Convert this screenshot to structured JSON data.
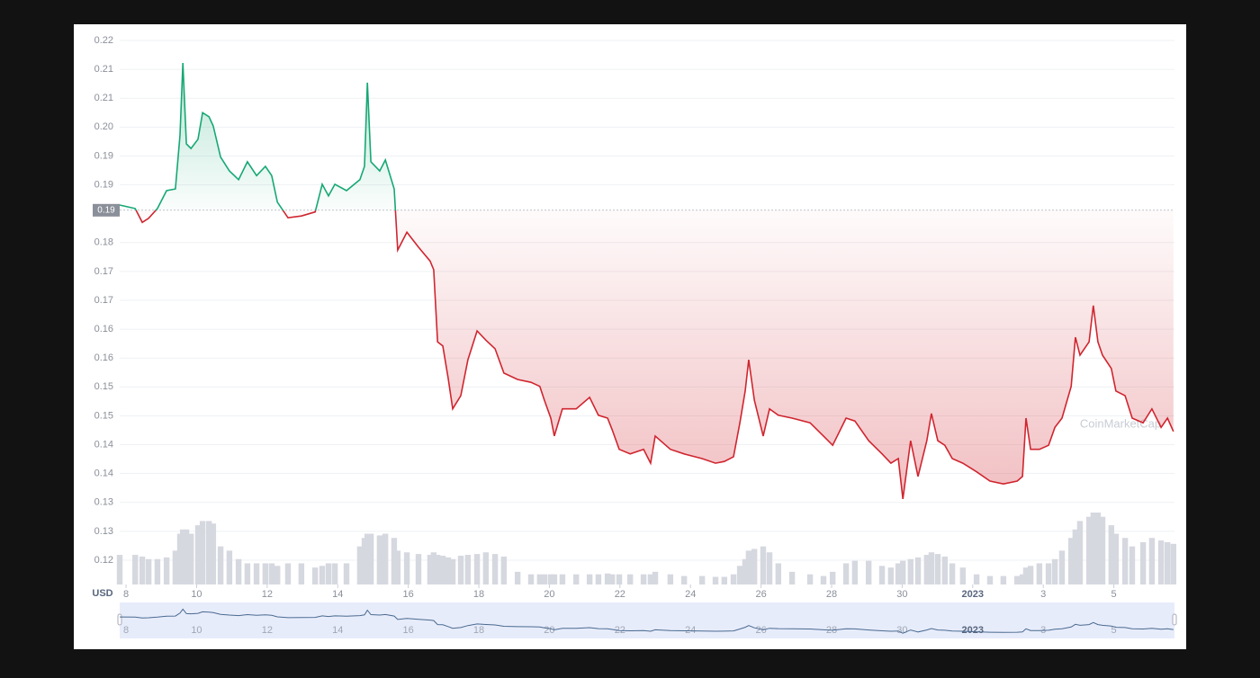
{
  "chart_data": {
    "type": "line",
    "currency": "USD",
    "watermark": "CoinMarketCap",
    "x": [
      -0.18,
      0.26,
      0.46,
      0.64,
      0.89,
      1.15,
      1.4,
      1.53,
      1.61,
      1.71,
      1.84,
      2.04,
      2.17,
      2.35,
      2.47,
      2.68,
      2.93,
      3.19,
      3.44,
      3.7,
      3.95,
      4.13,
      4.29,
      4.59,
      4.97,
      5.36,
      5.56,
      5.74,
      5.92,
      6.25,
      6.63,
      6.76,
      6.84,
      6.94,
      7.19,
      7.35,
      7.6,
      7.7,
      7.96,
      8.29,
      8.62,
      8.72,
      8.83,
      8.98,
      9.13,
      9.26,
      9.49,
      9.69,
      9.95,
      10.2,
      10.46,
      10.71,
      11.1,
      11.48,
      11.73,
      11.86,
      12.04,
      12.14,
      12.37,
      12.76,
      13.14,
      13.39,
      13.65,
      13.78,
      13.98,
      14.29,
      14.67,
      14.87,
      15.0,
      15.43,
      15.82,
      16.33,
      16.71,
      16.96,
      17.22,
      17.4,
      17.55,
      17.65,
      17.81,
      18.06,
      18.24,
      18.49,
      18.88,
      19.39,
      19.77,
      20.03,
      20.41,
      20.66,
      21.05,
      21.43,
      21.68,
      21.89,
      22.02,
      22.24,
      22.45,
      22.7,
      22.83,
      23.01,
      23.21,
      23.42,
      23.72,
      24.11,
      24.49,
      24.87,
      25.26,
      25.41,
      25.51,
      25.64,
      25.89,
      26.15,
      26.33,
      26.53,
      26.79,
      26.91,
      27.04,
      27.3,
      27.42,
      27.55,
      27.68,
      27.93,
      28.06,
      28.32,
      28.52,
      28.83,
      29.08,
      29.34,
      29.52,
      29.69
    ],
    "values": [
      0.1865,
      0.1859,
      0.1835,
      0.1842,
      0.1859,
      0.189,
      0.1893,
      0.1986,
      0.2111,
      0.1971,
      0.1963,
      0.1979,
      0.2025,
      0.2018,
      0.2002,
      0.1948,
      0.1924,
      0.1909,
      0.194,
      0.1916,
      0.1932,
      0.1916,
      0.187,
      0.1843,
      0.1846,
      0.1853,
      0.1901,
      0.1881,
      0.1901,
      0.189,
      0.1909,
      0.1932,
      0.2077,
      0.194,
      0.1924,
      0.1943,
      0.1893,
      0.1787,
      0.1818,
      0.1792,
      0.1768,
      0.1753,
      0.1628,
      0.1621,
      0.1566,
      0.1512,
      0.1535,
      0.1597,
      0.1647,
      0.1631,
      0.1616,
      0.1574,
      0.1563,
      0.1558,
      0.1551,
      0.1527,
      0.1496,
      0.1465,
      0.1512,
      0.1512,
      0.1532,
      0.1501,
      0.1496,
      0.1476,
      0.1442,
      0.1434,
      0.1442,
      0.1418,
      0.1465,
      0.1442,
      0.1434,
      0.1426,
      0.1418,
      0.1421,
      0.1429,
      0.1488,
      0.1543,
      0.1597,
      0.1527,
      0.1465,
      0.1512,
      0.1501,
      0.1496,
      0.1488,
      0.1465,
      0.1449,
      0.1496,
      0.1491,
      0.1457,
      0.1434,
      0.1418,
      0.1426,
      0.1356,
      0.1457,
      0.1395,
      0.1457,
      0.1504,
      0.1457,
      0.1449,
      0.1426,
      0.1418,
      0.1403,
      0.1387,
      0.1382,
      0.1387,
      0.1395,
      0.1496,
      0.1442,
      0.1442,
      0.1449,
      0.148,
      0.1496,
      0.1551,
      0.1636,
      0.1605,
      0.1628,
      0.1691,
      0.1628,
      0.1605,
      0.1582,
      0.1543,
      0.1535,
      0.1496,
      0.1488,
      0.1512,
      0.148,
      0.1496,
      0.1473
    ],
    "volume": [
      35,
      35,
      33,
      30,
      30,
      32,
      40,
      60,
      65,
      65,
      60,
      70,
      75,
      75,
      72,
      45,
      40,
      30,
      25,
      25,
      25,
      25,
      22,
      25,
      25,
      20,
      22,
      25,
      25,
      25,
      45,
      55,
      60,
      60,
      58,
      60,
      55,
      40,
      38,
      36,
      35,
      38,
      35,
      34,
      32,
      30,
      34,
      35,
      36,
      38,
      36,
      33,
      15,
      12,
      12,
      12,
      12,
      12,
      12,
      12,
      12,
      12,
      13,
      12,
      12,
      12,
      12,
      12,
      15,
      12,
      10,
      10,
      9,
      9,
      12,
      22,
      30,
      40,
      42,
      45,
      38,
      25,
      15,
      12,
      10,
      15,
      25,
      28,
      28,
      22,
      20,
      25,
      28,
      30,
      32,
      35,
      38,
      36,
      33,
      25,
      20,
      12,
      10,
      10,
      10,
      12,
      20,
      22,
      25,
      25,
      30,
      40,
      55,
      65,
      75,
      80,
      85,
      85,
      80,
      70,
      60,
      55,
      45,
      50,
      55,
      52,
      50,
      48
    ],
    "up_color": "#16a874",
    "down_color": "#d0252f",
    "volume_color": "#d6d8e0",
    "reference": {
      "value": 0.1856,
      "label": "0.19"
    },
    "xlim": [
      -0.18,
      29.72
    ],
    "xticks": [
      {
        "value": 0,
        "label": "8"
      },
      {
        "value": 2,
        "label": "10"
      },
      {
        "value": 4,
        "label": "12"
      },
      {
        "value": 6,
        "label": "14"
      },
      {
        "value": 8,
        "label": "16"
      },
      {
        "value": 10,
        "label": "18"
      },
      {
        "value": 12,
        "label": "20"
      },
      {
        "value": 14,
        "label": "22"
      },
      {
        "value": 16,
        "label": "24"
      },
      {
        "value": 18,
        "label": "26"
      },
      {
        "value": 20,
        "label": "28"
      },
      {
        "value": 22,
        "label": "30"
      },
      {
        "value": 24,
        "label": "2023"
      },
      {
        "value": 26,
        "label": "3"
      },
      {
        "value": 28,
        "label": "5"
      }
    ],
    "ylim": [
      0.125,
      0.215
    ],
    "yticks": [
      {
        "value": 0.215,
        "label": "0.22"
      },
      {
        "value": 0.21,
        "label": "0.21"
      },
      {
        "value": 0.205,
        "label": "0.21"
      },
      {
        "value": 0.2,
        "label": "0.20"
      },
      {
        "value": 0.195,
        "label": "0.19"
      },
      {
        "value": 0.19,
        "label": "0.19"
      },
      {
        "value": 0.18,
        "label": "0.18"
      },
      {
        "value": 0.175,
        "label": "0.17"
      },
      {
        "value": 0.17,
        "label": "0.17"
      },
      {
        "value": 0.165,
        "label": "0.16"
      },
      {
        "value": 0.16,
        "label": "0.16"
      },
      {
        "value": 0.155,
        "label": "0.15"
      },
      {
        "value": 0.15,
        "label": "0.15"
      },
      {
        "value": 0.145,
        "label": "0.14"
      },
      {
        "value": 0.14,
        "label": "0.14"
      },
      {
        "value": 0.135,
        "label": "0.13"
      },
      {
        "value": 0.13,
        "label": "0.13"
      },
      {
        "value": 0.125,
        "label": "0.12"
      }
    ],
    "grid": true
  }
}
